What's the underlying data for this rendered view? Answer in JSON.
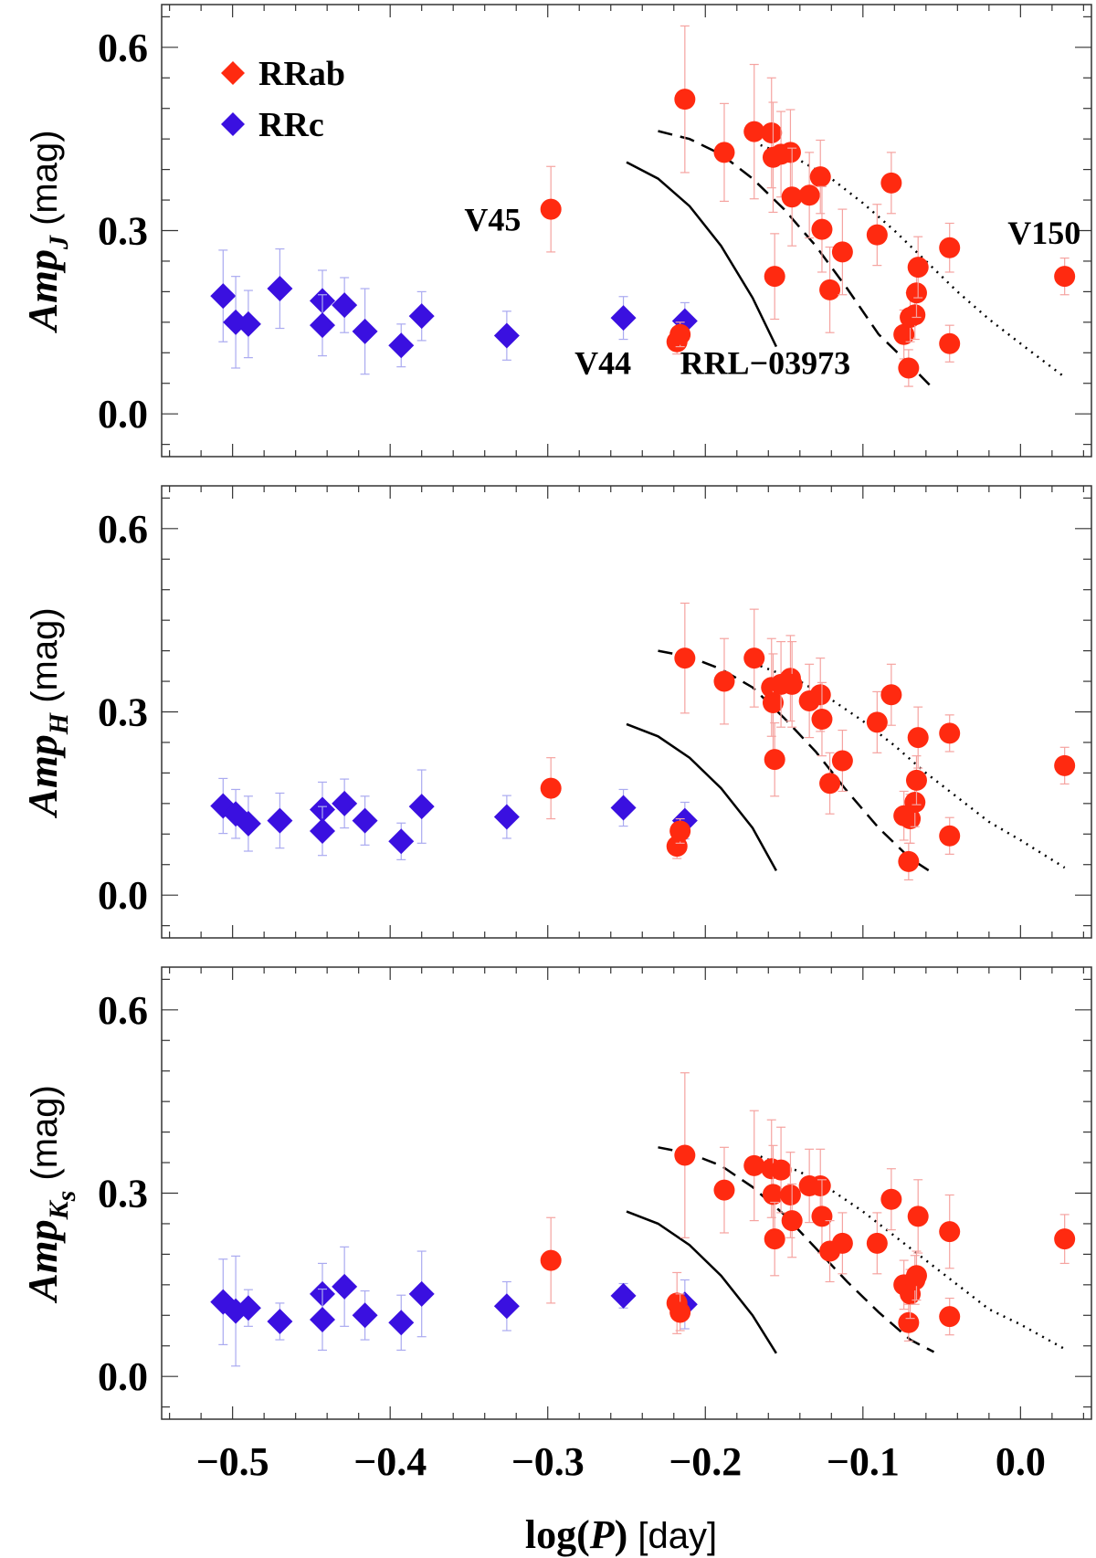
{
  "chart_data": {
    "type": "scatter",
    "xlabel": {
      "main": "log(",
      "var": "P",
      "close": ")",
      "unit": " [day]"
    },
    "xlim": [
      -0.545,
      0.045
    ],
    "xticks": [
      -0.5,
      -0.4,
      -0.3,
      -0.2,
      -0.1,
      0.0
    ],
    "xtick_labels": [
      "−0.5",
      "−0.4",
      "−0.3",
      "−0.2",
      "−0.1",
      "0.0"
    ],
    "ylim": [
      -0.07,
      0.67
    ],
    "yticks": [
      0.0,
      0.3,
      0.6
    ],
    "ytick_labels": [
      "0.0",
      "0.3",
      "0.6"
    ],
    "legend": {
      "position": "top-left",
      "entries": [
        {
          "label": "RRab",
          "color": "#ff2a10",
          "marker": "diamond"
        },
        {
          "label": "RRc",
          "color": "#3a10e0",
          "marker": "diamond"
        }
      ]
    },
    "colors": {
      "rrab": "#ff2a10",
      "rrc": "#3a10e0",
      "rrab_err": "#f5a3a0",
      "rrc_err": "#aaaaf0"
    },
    "panels": [
      {
        "id": "J",
        "ylabel": {
          "main": "Amp",
          "sub": "J",
          "unit": " (mag)"
        },
        "rrc": [
          [
            -0.506,
            0.193,
            0.075
          ],
          [
            -0.498,
            0.15,
            0.075
          ],
          [
            -0.49,
            0.147,
            0.055
          ],
          [
            -0.47,
            0.205,
            0.065
          ],
          [
            -0.443,
            0.185,
            0.05
          ],
          [
            -0.443,
            0.145,
            0.05
          ],
          [
            -0.429,
            0.178,
            0.045
          ],
          [
            -0.416,
            0.135,
            0.07
          ],
          [
            -0.393,
            0.112,
            0.035
          ],
          [
            -0.38,
            0.16,
            0.04
          ],
          [
            -0.326,
            0.128,
            0.04
          ],
          [
            -0.252,
            0.157,
            0.035
          ],
          [
            -0.213,
            0.152,
            0.03
          ]
        ],
        "rrab": [
          [
            -0.298,
            0.335,
            0.07
          ],
          [
            -0.218,
            0.118,
            0.02
          ],
          [
            -0.216,
            0.13,
            0.02
          ],
          [
            -0.213,
            0.515,
            0.12
          ],
          [
            -0.188,
            0.428,
            0.08
          ],
          [
            -0.169,
            0.462,
            0.11
          ],
          [
            -0.158,
            0.46,
            0.09
          ],
          [
            -0.157,
            0.42,
            0.09
          ],
          [
            -0.156,
            0.225,
            0.07
          ],
          [
            -0.152,
            0.425,
            0.07
          ],
          [
            -0.146,
            0.428,
            0.07
          ],
          [
            -0.145,
            0.355,
            0.08
          ],
          [
            -0.134,
            0.358,
            0.07
          ],
          [
            -0.127,
            0.388,
            0.06
          ],
          [
            -0.126,
            0.302,
            0.07
          ],
          [
            -0.121,
            0.203,
            0.07
          ],
          [
            -0.113,
            0.265,
            0.07
          ],
          [
            -0.091,
            0.293,
            0.05
          ],
          [
            -0.082,
            0.378,
            0.05
          ],
          [
            -0.074,
            0.13,
            0.04
          ],
          [
            -0.071,
            0.075,
            0.03
          ],
          [
            -0.07,
            0.158,
            0.04
          ],
          [
            -0.067,
            0.162,
            0.04
          ],
          [
            -0.066,
            0.198,
            0.04
          ],
          [
            -0.065,
            0.24,
            0.05
          ],
          [
            -0.045,
            0.272,
            0.04
          ],
          [
            -0.045,
            0.115,
            0.03
          ],
          [
            0.028,
            0.225,
            0.03
          ]
        ],
        "annotations": [
          {
            "text": "V45",
            "x": -0.335,
            "y": 0.3
          },
          {
            "text": "V44",
            "x": -0.265,
            "y": 0.065
          },
          {
            "text": "RRL−03973",
            "x": -0.162,
            "y": 0.065
          },
          {
            "text": "V150",
            "x": 0.015,
            "y": 0.278
          }
        ],
        "curves": {
          "dashed": [
            [
              -0.23,
              0.463
            ],
            [
              -0.21,
              0.45
            ],
            [
              -0.19,
              0.425
            ],
            [
              -0.17,
              0.385
            ],
            [
              -0.15,
              0.335
            ],
            [
              -0.13,
              0.275
            ],
            [
              -0.11,
              0.205
            ],
            [
              -0.09,
              0.13
            ],
            [
              -0.07,
              0.08
            ],
            [
              -0.055,
              0.04
            ]
          ],
          "dotted": [
            [
              -0.165,
              0.44
            ],
            [
              -0.14,
              0.415
            ],
            [
              -0.12,
              0.385
            ],
            [
              -0.1,
              0.345
            ],
            [
              -0.08,
              0.3
            ],
            [
              -0.06,
              0.25
            ],
            [
              -0.04,
              0.2
            ],
            [
              -0.02,
              0.155
            ],
            [
              0.0,
              0.115
            ],
            [
              0.028,
              0.06
            ]
          ],
          "solid": [
            [
              -0.25,
              0.412
            ],
            [
              -0.23,
              0.385
            ],
            [
              -0.21,
              0.34
            ],
            [
              -0.19,
              0.275
            ],
            [
              -0.17,
              0.19
            ],
            [
              -0.155,
              0.11
            ]
          ]
        }
      },
      {
        "id": "H",
        "ylabel": {
          "main": "Amp",
          "sub": "H",
          "unit": " (mag)"
        },
        "rrc": [
          [
            -0.506,
            0.146,
            0.045
          ],
          [
            -0.498,
            0.133,
            0.04
          ],
          [
            -0.49,
            0.117,
            0.045
          ],
          [
            -0.47,
            0.122,
            0.045
          ],
          [
            -0.443,
            0.14,
            0.045
          ],
          [
            -0.443,
            0.105,
            0.04
          ],
          [
            -0.429,
            0.15,
            0.04
          ],
          [
            -0.416,
            0.122,
            0.04
          ],
          [
            -0.393,
            0.088,
            0.03
          ],
          [
            -0.38,
            0.145,
            0.06
          ],
          [
            -0.326,
            0.128,
            0.035
          ],
          [
            -0.252,
            0.143,
            0.03
          ],
          [
            -0.213,
            0.122,
            0.03
          ]
        ],
        "rrab": [
          [
            -0.298,
            0.175,
            0.05
          ],
          [
            -0.218,
            0.08,
            0.02
          ],
          [
            -0.216,
            0.105,
            0.02
          ],
          [
            -0.213,
            0.388,
            0.09
          ],
          [
            -0.188,
            0.35,
            0.07
          ],
          [
            -0.169,
            0.388,
            0.08
          ],
          [
            -0.158,
            0.34,
            0.08
          ],
          [
            -0.157,
            0.315,
            0.08
          ],
          [
            -0.156,
            0.222,
            0.06
          ],
          [
            -0.152,
            0.345,
            0.07
          ],
          [
            -0.146,
            0.355,
            0.07
          ],
          [
            -0.145,
            0.345,
            0.07
          ],
          [
            -0.134,
            0.318,
            0.06
          ],
          [
            -0.127,
            0.328,
            0.06
          ],
          [
            -0.126,
            0.288,
            0.06
          ],
          [
            -0.121,
            0.183,
            0.05
          ],
          [
            -0.113,
            0.22,
            0.05
          ],
          [
            -0.091,
            0.283,
            0.05
          ],
          [
            -0.082,
            0.328,
            0.05
          ],
          [
            -0.074,
            0.13,
            0.04
          ],
          [
            -0.071,
            0.055,
            0.03
          ],
          [
            -0.07,
            0.125,
            0.04
          ],
          [
            -0.067,
            0.152,
            0.04
          ],
          [
            -0.066,
            0.188,
            0.04
          ],
          [
            -0.065,
            0.258,
            0.05
          ],
          [
            -0.045,
            0.265,
            0.03
          ],
          [
            -0.045,
            0.097,
            0.03
          ],
          [
            0.028,
            0.212,
            0.03
          ]
        ],
        "annotations": [],
        "curves": {
          "dashed": [
            [
              -0.23,
              0.4
            ],
            [
              -0.21,
              0.39
            ],
            [
              -0.19,
              0.37
            ],
            [
              -0.17,
              0.34
            ],
            [
              -0.15,
              0.29
            ],
            [
              -0.13,
              0.235
            ],
            [
              -0.11,
              0.17
            ],
            [
              -0.09,
              0.11
            ],
            [
              -0.07,
              0.06
            ],
            [
              -0.055,
              0.035
            ]
          ],
          "dotted": [
            [
              -0.165,
              0.375
            ],
            [
              -0.14,
              0.35
            ],
            [
              -0.12,
              0.32
            ],
            [
              -0.1,
              0.285
            ],
            [
              -0.08,
              0.245
            ],
            [
              -0.06,
              0.2
            ],
            [
              -0.04,
              0.16
            ],
            [
              -0.02,
              0.12
            ],
            [
              0.0,
              0.09
            ],
            [
              0.028,
              0.045
            ]
          ],
          "solid": [
            [
              -0.25,
              0.28
            ],
            [
              -0.23,
              0.26
            ],
            [
              -0.21,
              0.225
            ],
            [
              -0.19,
              0.175
            ],
            [
              -0.17,
              0.11
            ],
            [
              -0.155,
              0.04
            ]
          ]
        }
      },
      {
        "id": "Ks",
        "ylabel": {
          "main": "Amp",
          "sub": "K",
          "subsub": "s",
          "unit": " (mag)"
        },
        "rrc": [
          [
            -0.506,
            0.122,
            0.07
          ],
          [
            -0.498,
            0.107,
            0.09
          ],
          [
            -0.49,
            0.112,
            0.03
          ],
          [
            -0.47,
            0.09,
            0.03
          ],
          [
            -0.443,
            0.135,
            0.05
          ],
          [
            -0.443,
            0.093,
            0.05
          ],
          [
            -0.429,
            0.147,
            0.065
          ],
          [
            -0.416,
            0.1,
            0.04
          ],
          [
            -0.393,
            0.088,
            0.045
          ],
          [
            -0.38,
            0.135,
            0.07
          ],
          [
            -0.326,
            0.115,
            0.04
          ],
          [
            -0.252,
            0.132,
            0.02
          ],
          [
            -0.213,
            0.118,
            0.04
          ]
        ],
        "rrab": [
          [
            -0.298,
            0.19,
            0.07
          ],
          [
            -0.218,
            0.12,
            0.05
          ],
          [
            -0.216,
            0.105,
            0.03
          ],
          [
            -0.213,
            0.362,
            0.135
          ],
          [
            -0.188,
            0.305,
            0.07
          ],
          [
            -0.169,
            0.345,
            0.09
          ],
          [
            -0.158,
            0.34,
            0.08
          ],
          [
            -0.157,
            0.298,
            0.08
          ],
          [
            -0.156,
            0.225,
            0.06
          ],
          [
            -0.152,
            0.338,
            0.07
          ],
          [
            -0.146,
            0.297,
            0.07
          ],
          [
            -0.145,
            0.255,
            0.06
          ],
          [
            -0.134,
            0.312,
            0.06
          ],
          [
            -0.127,
            0.312,
            0.06
          ],
          [
            -0.126,
            0.262,
            0.06
          ],
          [
            -0.121,
            0.205,
            0.05
          ],
          [
            -0.113,
            0.218,
            0.05
          ],
          [
            -0.091,
            0.218,
            0.05
          ],
          [
            -0.082,
            0.29,
            0.05
          ],
          [
            -0.074,
            0.15,
            0.04
          ],
          [
            -0.071,
            0.088,
            0.03
          ],
          [
            -0.07,
            0.135,
            0.04
          ],
          [
            -0.067,
            0.158,
            0.04
          ],
          [
            -0.066,
            0.165,
            0.04
          ],
          [
            -0.065,
            0.262,
            0.06
          ],
          [
            -0.045,
            0.237,
            0.06
          ],
          [
            -0.045,
            0.098,
            0.03
          ],
          [
            0.028,
            0.225,
            0.04
          ]
        ],
        "annotations": [],
        "curves": {
          "dashed": [
            [
              -0.23,
              0.375
            ],
            [
              -0.21,
              0.365
            ],
            [
              -0.19,
              0.345
            ],
            [
              -0.17,
              0.31
            ],
            [
              -0.15,
              0.265
            ],
            [
              -0.13,
              0.21
            ],
            [
              -0.11,
              0.155
            ],
            [
              -0.09,
              0.105
            ],
            [
              -0.07,
              0.06
            ],
            [
              -0.055,
              0.04
            ]
          ],
          "dotted": [
            [
              -0.165,
              0.36
            ],
            [
              -0.14,
              0.335
            ],
            [
              -0.12,
              0.305
            ],
            [
              -0.1,
              0.27
            ],
            [
              -0.08,
              0.23
            ],
            [
              -0.06,
              0.19
            ],
            [
              -0.04,
              0.15
            ],
            [
              -0.02,
              0.11
            ],
            [
              0.0,
              0.085
            ],
            [
              0.028,
              0.045
            ]
          ],
          "solid": [
            [
              -0.25,
              0.27
            ],
            [
              -0.23,
              0.25
            ],
            [
              -0.21,
              0.215
            ],
            [
              -0.19,
              0.165
            ],
            [
              -0.17,
              0.1
            ],
            [
              -0.155,
              0.038
            ]
          ]
        }
      }
    ]
  }
}
